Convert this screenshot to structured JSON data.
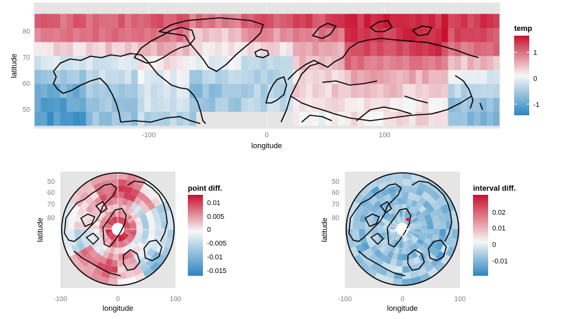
{
  "colors": {
    "panel_bg": "#e5e5e5",
    "grid": "#f2f2f2",
    "low": "#2a86c0",
    "mid": "#f7f7f7",
    "high": "#c8102e",
    "coast": "#000000"
  },
  "chart_data": [
    {
      "type": "heatmap",
      "projection": "equirectangular",
      "xlabel": "longitude",
      "ylabel": "latitude",
      "xlim": [
        -180,
        180
      ],
      "ylim": [
        44,
        89
      ],
      "x_ticks": [
        -100,
        0,
        100
      ],
      "y_ticks": [
        50,
        60,
        70,
        80
      ],
      "legend": {
        "title": "temp",
        "position": "right",
        "breaks": [
          1,
          0,
          -1
        ],
        "range": [
          -1.45,
          1.6
        ]
      },
      "grid": true,
      "cell_size": {
        "lon": 5,
        "lat": 5
      },
      "lat_rows": [
        47.5,
        52.5,
        57.5,
        62.5,
        67.5,
        72.5,
        77.5,
        82.5
      ],
      "lon_bands": [
        {
          "from": -180,
          "to": -140,
          "values": [
            -1.2,
            -1.1,
            -0.9,
            -0.6,
            -0.3,
            0.2,
            0.9,
            1.0
          ]
        },
        {
          "from": -140,
          "to": -100,
          "values": [
            -0.7,
            -0.6,
            -0.5,
            -0.4,
            -0.2,
            0.3,
            0.9,
            1.0
          ]
        },
        {
          "from": -100,
          "to": -60,
          "values": [
            -0.4,
            -0.3,
            -0.2,
            -0.1,
            0.2,
            0.5,
            0.9,
            1.1
          ]
        },
        {
          "from": -60,
          "to": -20,
          "values": [
            -0.5,
            -0.6,
            -0.7,
            -0.5,
            -0.1,
            0.1,
            0.3,
            0.9
          ]
        },
        {
          "from": -20,
          "to": 20,
          "values": [
            -0.3,
            -0.4,
            -0.5,
            -0.5,
            -0.3,
            0.2,
            0.7,
            1.1
          ]
        },
        {
          "from": 20,
          "to": 60,
          "values": [
            0.0,
            0.1,
            0.3,
            0.2,
            0.4,
            0.6,
            0.9,
            1.2
          ]
        },
        {
          "from": 60,
          "to": 100,
          "values": [
            0.1,
            0.2,
            0.4,
            0.5,
            0.9,
            1.2,
            1.3,
            1.4
          ]
        },
        {
          "from": 100,
          "to": 140,
          "values": [
            0.2,
            0.1,
            0.3,
            0.5,
            0.9,
            1.3,
            1.5,
            1.4
          ]
        },
        {
          "from": 140,
          "to": 180,
          "values": [
            -0.8,
            -0.7,
            -0.4,
            -0.1,
            0.4,
            0.9,
            1.2,
            1.3
          ]
        }
      ]
    },
    {
      "type": "heatmap",
      "projection": "polar",
      "xlabel": "longitude",
      "ylabel": "latitude",
      "xlim": [
        -100,
        100
      ],
      "x_ticks": [
        -100,
        0,
        100
      ],
      "y_ticks": [
        50,
        60,
        70,
        80
      ],
      "legend": {
        "title": "point diff.",
        "position": "right",
        "breaks": [
          0.01,
          0.005,
          0,
          -0.005,
          -0.01,
          -0.015
        ],
        "range": [
          -0.0165,
          0.0135
        ]
      },
      "rings": [
        {
          "lat": 82.5,
          "values": [
            0.011,
            0.011,
            0.01,
            0.009,
            0.011,
            0.012,
            0.009,
            0.01,
            0.012,
            0.008,
            0.01,
            0.011
          ]
        },
        {
          "lat": 77.5,
          "values": [
            0.007,
            0.006,
            0.008,
            0.009,
            0.006,
            0.007,
            0.008,
            0.005,
            0.004,
            0.006,
            0.007,
            0.006
          ]
        },
        {
          "lat": 72.5,
          "values": [
            0.004,
            0.002,
            0.001,
            -0.001,
            -0.002,
            0.001,
            0.003,
            0.0,
            -0.002,
            0.002,
            0.003,
            0.002
          ]
        },
        {
          "lat": 67.5,
          "values": [
            0.006,
            -0.004,
            -0.006,
            -0.005,
            0.002,
            0.008,
            0.005,
            -0.002,
            -0.003,
            0.001,
            0.004,
            0.007
          ]
        },
        {
          "lat": 62.5,
          "values": [
            0.009,
            0.003,
            0.0,
            -0.001,
            -0.002,
            0.004,
            0.008,
            0.006,
            -0.004,
            0.001,
            0.005,
            0.009
          ]
        },
        {
          "lat": 57.5,
          "values": [
            0.01,
            0.006,
            -0.004,
            -0.002,
            -0.005,
            0.003,
            0.009,
            0.007,
            -0.005,
            0.002,
            0.003,
            0.008
          ]
        },
        {
          "lat": 52.5,
          "values": [
            0.008,
            0.001,
            -0.006,
            -0.003,
            -0.008,
            0.002,
            0.007,
            0.006,
            -0.003,
            -0.001,
            0.004,
            0.006
          ]
        },
        {
          "lat": 47.5,
          "values": [
            0.006,
            -0.002,
            -0.004,
            -0.006,
            -0.01,
            0.001,
            0.005,
            0.004,
            -0.002,
            -0.003,
            0.002,
            0.005
          ]
        }
      ]
    },
    {
      "type": "heatmap",
      "projection": "polar",
      "xlabel": "longitude",
      "ylabel": "latitude",
      "xlim": [
        -100,
        100
      ],
      "x_ticks": [
        -100,
        0,
        100
      ],
      "y_ticks": [
        50,
        60,
        70,
        80
      ],
      "legend": {
        "title": "interval diff.",
        "position": "right",
        "breaks": [
          0.02,
          0.01,
          0,
          -0.01
        ],
        "range": [
          -0.019,
          0.029
        ]
      },
      "rings": [
        {
          "lat": 82.5,
          "values": [
            -0.007,
            -0.009,
            -0.006,
            -0.008,
            -0.01,
            -0.005,
            -0.009,
            -0.008,
            -0.004,
            -0.007,
            -0.008,
            -0.006
          ]
        },
        {
          "lat": 77.5,
          "values": [
            -0.009,
            -0.01,
            -0.007,
            -0.011,
            -0.008,
            -0.009,
            -0.012,
            -0.007,
            -0.008,
            -0.006,
            -0.009,
            -0.01
          ]
        },
        {
          "lat": 72.5,
          "values": [
            -0.008,
            -0.011,
            -0.009,
            -0.007,
            -0.012,
            -0.01,
            -0.008,
            -0.009,
            -0.011,
            -0.007,
            -0.01,
            -0.009
          ]
        },
        {
          "lat": 67.5,
          "values": [
            -0.01,
            -0.008,
            -0.012,
            -0.009,
            -0.007,
            -0.011,
            -0.01,
            -0.006,
            -0.009,
            -0.012,
            -0.008,
            -0.01
          ]
        },
        {
          "lat": 62.5,
          "values": [
            -0.009,
            -0.012,
            -0.008,
            -0.01,
            -0.011,
            -0.007,
            -0.009,
            -0.012,
            -0.006,
            -0.008,
            -0.011,
            -0.009
          ]
        },
        {
          "lat": 57.5,
          "values": [
            -0.011,
            -0.007,
            -0.01,
            -0.012,
            -0.009,
            -0.01,
            -0.006,
            -0.009,
            -0.011,
            -0.01,
            -0.007,
            -0.012
          ]
        },
        {
          "lat": 52.5,
          "values": [
            -0.008,
            -0.01,
            -0.011,
            -0.007,
            -0.012,
            -0.008,
            -0.01,
            -0.007,
            -0.009,
            -0.011,
            -0.012,
            -0.008
          ]
        },
        {
          "lat": 47.5,
          "values": [
            -0.006,
            -0.009,
            -0.008,
            -0.01,
            -0.007,
            -0.011,
            -0.006,
            -0.01,
            -0.008,
            -0.005,
            -0.009,
            -0.007
          ]
        }
      ],
      "highlight": {
        "lon": 30,
        "lat": 81,
        "value": 0.028
      }
    }
  ]
}
